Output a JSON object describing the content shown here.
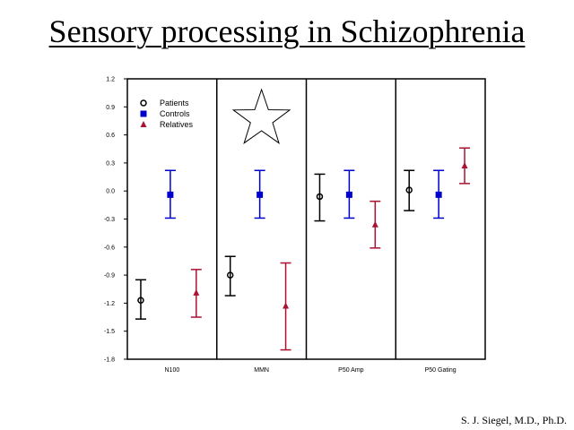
{
  "slide": {
    "title": "Sensory processing in Schizophrenia",
    "author": "S. J. Siegel, M.D., Ph.D."
  },
  "chart_data": {
    "type": "scatter",
    "title": "",
    "xlabel": "",
    "ylabel": "",
    "ylim": [
      -1.8,
      1.2
    ],
    "y_ticks": [
      "1.2",
      "0.9",
      "0.6",
      "0.3",
      "0.0",
      "-0.3",
      "-0.6",
      "-0.9",
      "-1.2",
      "-1.5",
      "-1.8"
    ],
    "categories": [
      "N100",
      "MMN",
      "P50 Amp",
      "P50 Gating"
    ],
    "grid": false,
    "legend_position": "top-left",
    "series": [
      {
        "name": "Patients",
        "color": "#000000",
        "marker": "circle",
        "points": [
          {
            "category": "N100",
            "y": -1.17,
            "low": -1.37,
            "high": -0.95
          },
          {
            "category": "MMN",
            "y": -0.9,
            "low": -1.12,
            "high": -0.7
          },
          {
            "category": "P50 Amp",
            "y": -0.06,
            "low": -0.32,
            "high": 0.18
          },
          {
            "category": "P50 Gating",
            "y": 0.01,
            "low": -0.21,
            "high": 0.22
          }
        ]
      },
      {
        "name": "Controls",
        "color": "#0000cc",
        "marker": "square",
        "points": [
          {
            "category": "N100",
            "y": -0.04,
            "low": -0.29,
            "high": 0.22
          },
          {
            "category": "MMN",
            "y": -0.04,
            "low": -0.29,
            "high": 0.22
          },
          {
            "category": "P50 Amp",
            "y": -0.04,
            "low": -0.29,
            "high": 0.22
          },
          {
            "category": "P50 Gating",
            "y": -0.04,
            "low": -0.29,
            "high": 0.22
          }
        ]
      },
      {
        "name": "Relatives",
        "color": "#aa1133",
        "marker": "triangle",
        "points": [
          {
            "category": "N100",
            "y": -1.09,
            "low": -1.35,
            "high": -0.84
          },
          {
            "category": "MMN",
            "y": -1.23,
            "low": -1.7,
            "high": -0.77
          },
          {
            "category": "P50 Amp",
            "y": -0.36,
            "low": -0.61,
            "high": -0.11
          },
          {
            "category": "P50 Gating",
            "y": 0.27,
            "low": 0.08,
            "high": 0.46
          }
        ]
      }
    ],
    "annotations": [
      {
        "type": "star",
        "category": "MMN",
        "description": "star outline"
      }
    ]
  }
}
